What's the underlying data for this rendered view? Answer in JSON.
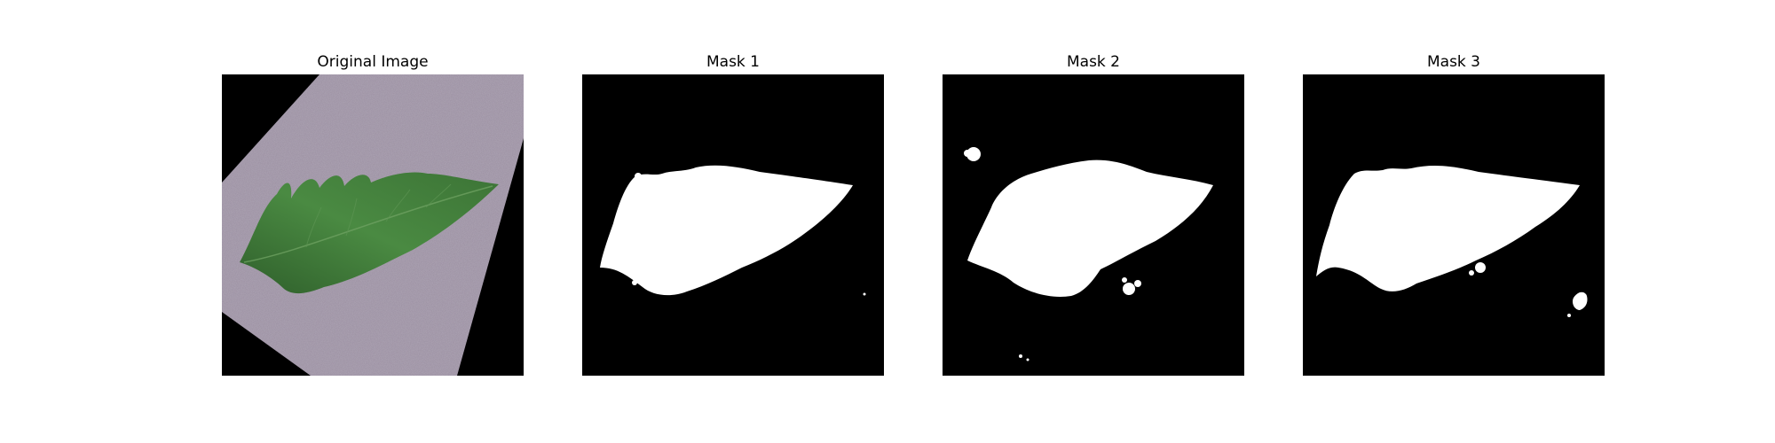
{
  "panels": [
    {
      "title": "Original Image",
      "kind": "photo"
    },
    {
      "title": "Mask 1",
      "kind": "mask"
    },
    {
      "title": "Mask 2",
      "kind": "mask"
    },
    {
      "title": "Mask 3",
      "kind": "mask"
    }
  ],
  "colors": {
    "background": "#000000",
    "mask_foreground": "#ffffff",
    "surface": "#9a8ea0",
    "leaf": "#3f7a3a",
    "leaf_dark": "#2f5f2b"
  }
}
